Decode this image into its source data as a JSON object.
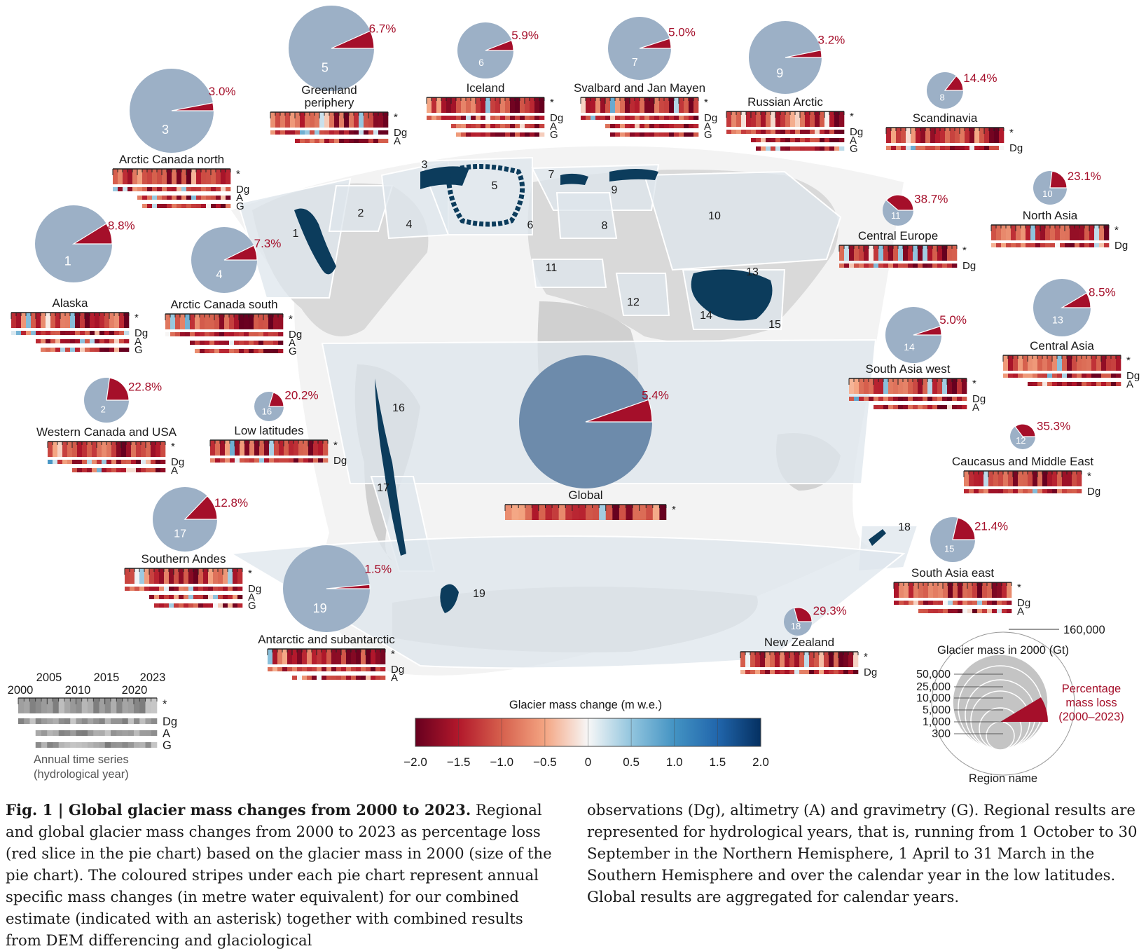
{
  "colors": {
    "mass_loss_red": "#a50f2a",
    "pie_blue": "#9cb0c6",
    "global_pie_blue": "#6d8bab",
    "region_box_fill": "#dde5ec",
    "land_gray": "#dadada",
    "glacier_dark": "#0c3c5c"
  },
  "colorbar": {
    "title": "Glacier mass change (m w.e.)",
    "ticks": [
      "−2.0",
      "−1.5",
      "−1.0",
      "−0.5",
      "0",
      "0.5",
      "1.0",
      "1.5",
      "2.0"
    ],
    "min": -2.0,
    "max": 2.0
  },
  "legend": {
    "years_top": [
      "2005",
      "2015",
      "2023"
    ],
    "years_bottom": [
      "2000",
      "2010",
      "2020"
    ],
    "row_labels": [
      "*",
      "Dg",
      "A",
      "G"
    ],
    "caption_line1": "Annual time series",
    "caption_line2": "(hydrological year)",
    "size_title": "Glacier mass in 2000 (Gt)",
    "size_values": [
      "160,000",
      "50,000",
      "25,000",
      "10,000",
      "5,000",
      "1,000",
      "300"
    ],
    "loss_line1": "Percentage",
    "loss_line2": "mass loss",
    "loss_line3": "(2000–2023)",
    "region_name": "Region name"
  },
  "map_labels": [
    "1",
    "2",
    "3",
    "4",
    "5",
    "6",
    "7",
    "8",
    "9",
    "10",
    "11",
    "12",
    "13",
    "14",
    "15",
    "16",
    "17",
    "18",
    "19"
  ],
  "regions": [
    {
      "id": "1",
      "name": "Alaska",
      "pct": "8.8%",
      "loss": 8.8,
      "rows": [
        "*",
        "Dg",
        "A",
        "G"
      ]
    },
    {
      "id": "2",
      "name": "Western Canada and USA",
      "pct": "22.8%",
      "loss": 22.8,
      "rows": [
        "*",
        "Dg",
        "A"
      ]
    },
    {
      "id": "3",
      "name": "Arctic Canada north",
      "pct": "3.0%",
      "loss": 3.0,
      "rows": [
        "*",
        "Dg",
        "A",
        "G"
      ]
    },
    {
      "id": "4",
      "name": "Arctic Canada south",
      "pct": "7.3%",
      "loss": 7.3,
      "rows": [
        "*",
        "Dg",
        "A",
        "G"
      ]
    },
    {
      "id": "5",
      "name": "Greenland periphery",
      "name_line1": "Greenland",
      "name_line2": "periphery",
      "pct": "6.7%",
      "loss": 6.7,
      "rows": [
        "*",
        "Dg",
        "A"
      ]
    },
    {
      "id": "6",
      "name": "Iceland",
      "pct": "5.9%",
      "loss": 5.9,
      "rows": [
        "*",
        "Dg",
        "A",
        "G"
      ]
    },
    {
      "id": "7",
      "name": "Svalbard and Jan Mayen",
      "pct": "5.0%",
      "loss": 5.0,
      "rows": [
        "*",
        "Dg",
        "A",
        "G"
      ]
    },
    {
      "id": "8",
      "name": "Scandinavia",
      "pct": "14.4%",
      "loss": 14.4,
      "rows": [
        "*",
        "Dg"
      ]
    },
    {
      "id": "9",
      "name": "Russian Arctic",
      "pct": "3.2%",
      "loss": 3.2,
      "rows": [
        "*",
        "Dg",
        "A",
        "G"
      ]
    },
    {
      "id": "10",
      "name": "North Asia",
      "pct": "23.1%",
      "loss": 23.1,
      "rows": [
        "*",
        "Dg"
      ]
    },
    {
      "id": "11",
      "name": "Central Europe",
      "pct": "38.7%",
      "loss": 38.7,
      "rows": [
        "*",
        "Dg"
      ]
    },
    {
      "id": "12",
      "name": "Caucasus and Middle East",
      "pct": "35.3%",
      "loss": 35.3,
      "rows": [
        "*",
        "Dg"
      ]
    },
    {
      "id": "13",
      "name": "Central Asia",
      "pct": "8.5%",
      "loss": 8.5,
      "rows": [
        "*",
        "Dg",
        "A"
      ]
    },
    {
      "id": "14",
      "name": "South Asia west",
      "pct": "5.0%",
      "loss": 5.0,
      "rows": [
        "*",
        "Dg",
        "A"
      ]
    },
    {
      "id": "15",
      "name": "South Asia east",
      "pct": "21.4%",
      "loss": 21.4,
      "rows": [
        "*",
        "Dg",
        "A"
      ]
    },
    {
      "id": "16",
      "name": "Low latitudes",
      "pct": "20.2%",
      "loss": 20.2,
      "rows": [
        "*",
        "Dg"
      ]
    },
    {
      "id": "17",
      "name": "Southern Andes",
      "pct": "12.8%",
      "loss": 12.8,
      "rows": [
        "*",
        "Dg",
        "A",
        "G"
      ]
    },
    {
      "id": "18",
      "name": "New Zealand",
      "pct": "29.3%",
      "loss": 29.3,
      "rows": [
        "*",
        "Dg"
      ]
    },
    {
      "id": "19",
      "name": "Antarctic and subantarctic",
      "pct": "1.5%",
      "loss": 1.5,
      "rows": [
        "*",
        "Dg",
        "A"
      ]
    },
    {
      "id": "",
      "name": "Global",
      "pct": "5.4%",
      "loss": 5.4,
      "rows": [
        "*"
      ]
    }
  ],
  "caption": {
    "bold": "Fig. 1 | Global glacier mass changes from 2000 to 2023.",
    "col1_rest": " Regional and global glacier mass changes from 2000 to 2023 as percentage loss (red slice in the pie chart) based on the glacier mass in 2000 (size of the pie chart). The coloured stripes under each pie chart represent annual specific mass changes (in metre water equivalent) for our combined estimate (indicated with an asterisk) together with combined results from DEM differencing and glaciological",
    "col2": "observations (Dg), altimetry (A) and gravimetry (G). Regional results are represented for hydrological years, that is, running from 1 October to 30 September in the Northern Hemisphere, 1 April to 31 March in the Southern Hemisphere and over the calendar year in the low latitudes. Global results are aggregated for calendar years."
  }
}
